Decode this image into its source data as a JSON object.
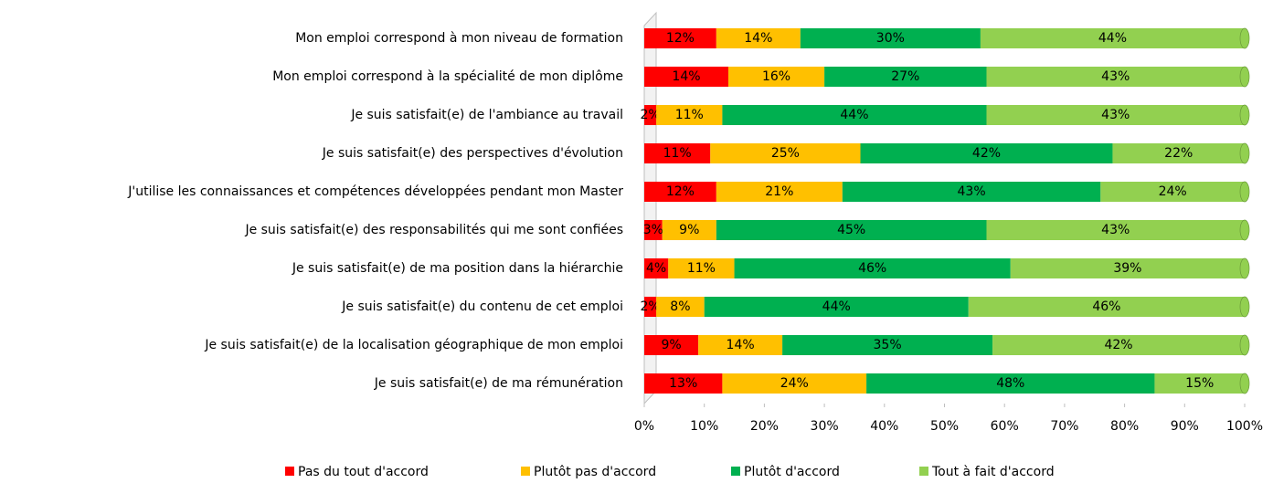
{
  "chart_data": {
    "type": "stacked_barh",
    "categories": [
      "Mon emploi correspond à mon niveau de formation",
      "Mon emploi correspond à la spécialité de mon diplôme",
      "Je suis satisfait(e) de l'ambiance au travail",
      "Je suis satisfait(e) des perspectives d'évolution",
      "J'utilise les connaissances et compétences développées pendant mon Master",
      "Je suis satisfait(e) des responsabilités qui me sont confiées",
      "Je suis satisfait(e) de ma position dans la hiérarchie",
      "Je suis satisfait(e) du contenu de cet emploi",
      "Je suis satisfait(e) de la localisation géographique de mon emploi",
      "Je suis satisfait(e) de ma rémunération"
    ],
    "series": [
      {
        "name": "Pas du tout d'accord",
        "color": "#ff0000",
        "values": [
          12,
          14,
          2,
          11,
          12,
          3,
          4,
          2,
          9,
          13
        ],
        "value_labels": [
          "12%",
          "14%",
          "2%",
          "11%",
          "12%",
          "3%",
          "4%",
          "2%",
          "9%",
          "13%"
        ]
      },
      {
        "name": "Plutôt pas d'accord",
        "color": "#ffc000",
        "values": [
          14,
          16,
          11,
          25,
          21,
          9,
          11,
          8,
          14,
          24
        ],
        "value_labels": [
          "14%",
          "16%",
          "11%",
          "25%",
          "21%",
          "9%",
          "11%",
          "8%",
          "14%",
          "24%"
        ]
      },
      {
        "name": "Plutôt d'accord",
        "color": "#00b050",
        "values": [
          30,
          27,
          44,
          42,
          43,
          45,
          46,
          44,
          35,
          48
        ],
        "value_labels": [
          "30%",
          "27%",
          "44%",
          "42%",
          "43%",
          "45%",
          "46%",
          "44%",
          "35%",
          "48%"
        ]
      },
      {
        "name": "Tout à fait d'accord",
        "color": "#92d050",
        "values": [
          44,
          43,
          43,
          22,
          24,
          43,
          39,
          46,
          42,
          15
        ],
        "value_labels": [
          "44%",
          "43%",
          "43%",
          "22%",
          "24%",
          "43%",
          "39%",
          "46%",
          "42%",
          "15%"
        ]
      }
    ],
    "xlim": [
      0,
      100
    ],
    "xticks": [
      {
        "value": 0,
        "label": "0%"
      },
      {
        "value": 10,
        "label": "10%"
      },
      {
        "value": 20,
        "label": "20%"
      },
      {
        "value": 30,
        "label": "30%"
      },
      {
        "value": 40,
        "label": "40%"
      },
      {
        "value": 50,
        "label": "50%"
      },
      {
        "value": 60,
        "label": "60%"
      },
      {
        "value": 70,
        "label": "70%"
      },
      {
        "value": 80,
        "label": "80%"
      },
      {
        "value": 90,
        "label": "90%"
      },
      {
        "value": 100,
        "label": "100%"
      }
    ],
    "legend": "bottom"
  }
}
